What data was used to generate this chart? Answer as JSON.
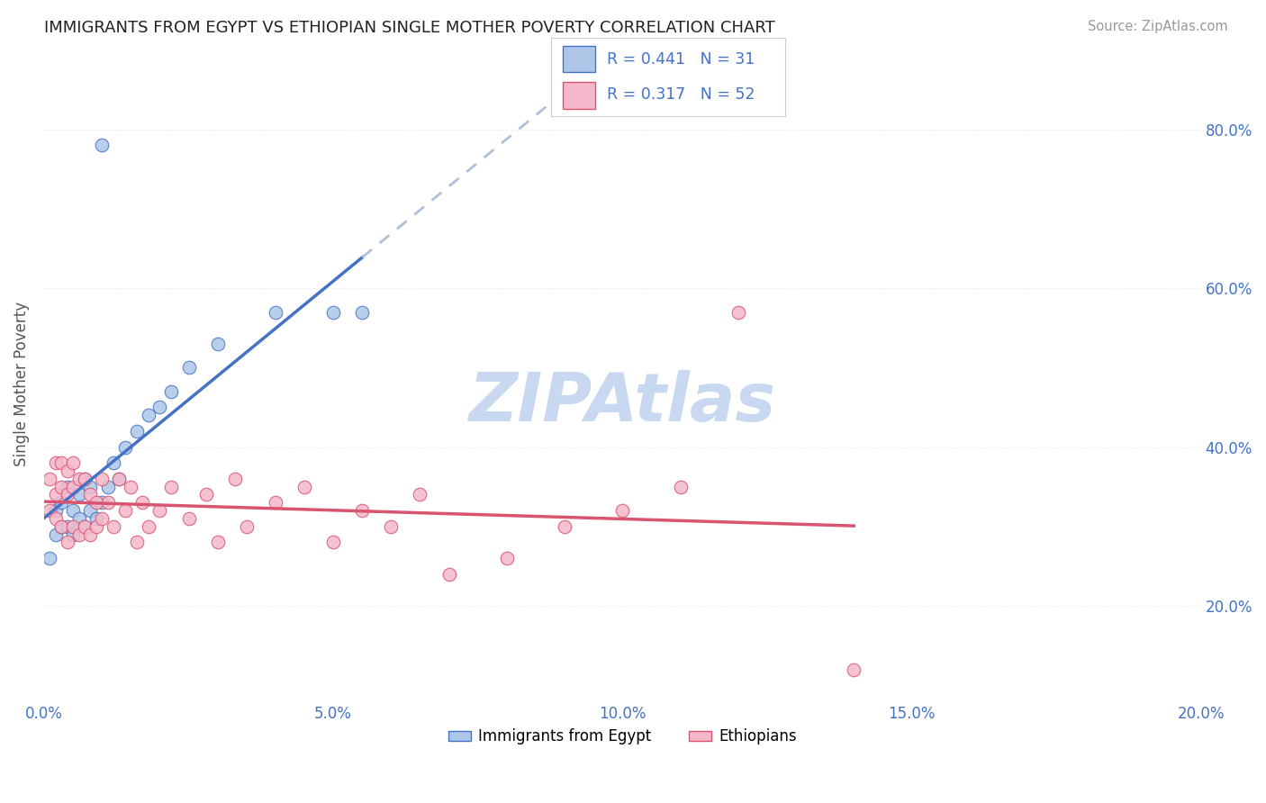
{
  "title": "IMMIGRANTS FROM EGYPT VS ETHIOPIAN SINGLE MOTHER POVERTY CORRELATION CHART",
  "source": "Source: ZipAtlas.com",
  "ylabel": "Single Mother Poverty",
  "legend_label1": "Immigrants from Egypt",
  "legend_label2": "Ethiopians",
  "r1": 0.441,
  "n1": 31,
  "r2": 0.317,
  "n2": 52,
  "color_egypt": "#adc6e8",
  "color_ethiopia": "#f5b8cb",
  "line_color_egypt": "#4472c4",
  "line_color_ethiopia": "#d9546e",
  "watermark": "ZIPAtlas",
  "watermark_color": "#c8d8f0",
  "xlim": [
    0.0,
    0.2
  ],
  "ylim": [
    0.08,
    0.88
  ],
  "yticks": [
    0.2,
    0.4,
    0.6,
    0.8
  ],
  "egypt_x": [
    0.001,
    0.002,
    0.002,
    0.003,
    0.003,
    0.004,
    0.004,
    0.005,
    0.005,
    0.006,
    0.006,
    0.007,
    0.007,
    0.008,
    0.008,
    0.009,
    0.01,
    0.011,
    0.012,
    0.013,
    0.014,
    0.016,
    0.018,
    0.02,
    0.022,
    0.025,
    0.03,
    0.04,
    0.05,
    0.055,
    0.01
  ],
  "egypt_y": [
    0.26,
    0.29,
    0.32,
    0.3,
    0.33,
    0.3,
    0.35,
    0.29,
    0.32,
    0.31,
    0.34,
    0.3,
    0.36,
    0.32,
    0.35,
    0.31,
    0.33,
    0.35,
    0.38,
    0.36,
    0.4,
    0.42,
    0.44,
    0.45,
    0.47,
    0.5,
    0.53,
    0.57,
    0.57,
    0.57,
    0.78
  ],
  "ethiopia_x": [
    0.001,
    0.001,
    0.002,
    0.002,
    0.002,
    0.003,
    0.003,
    0.003,
    0.004,
    0.004,
    0.004,
    0.005,
    0.005,
    0.005,
    0.006,
    0.006,
    0.007,
    0.007,
    0.008,
    0.008,
    0.009,
    0.009,
    0.01,
    0.01,
    0.011,
    0.012,
    0.013,
    0.014,
    0.015,
    0.016,
    0.017,
    0.018,
    0.02,
    0.022,
    0.025,
    0.028,
    0.03,
    0.033,
    0.035,
    0.04,
    0.045,
    0.05,
    0.055,
    0.06,
    0.065,
    0.07,
    0.08,
    0.09,
    0.1,
    0.11,
    0.12,
    0.14
  ],
  "ethiopia_y": [
    0.32,
    0.36,
    0.31,
    0.34,
    0.38,
    0.3,
    0.35,
    0.38,
    0.28,
    0.34,
    0.37,
    0.3,
    0.35,
    0.38,
    0.29,
    0.36,
    0.3,
    0.36,
    0.29,
    0.34,
    0.3,
    0.33,
    0.31,
    0.36,
    0.33,
    0.3,
    0.36,
    0.32,
    0.35,
    0.28,
    0.33,
    0.3,
    0.32,
    0.35,
    0.31,
    0.34,
    0.28,
    0.36,
    0.3,
    0.33,
    0.35,
    0.28,
    0.32,
    0.3,
    0.34,
    0.24,
    0.26,
    0.3,
    0.32,
    0.35,
    0.57,
    0.12
  ],
  "bg_color": "#ffffff",
  "grid_color": "#e0e8f0",
  "grid_style": "dotted"
}
